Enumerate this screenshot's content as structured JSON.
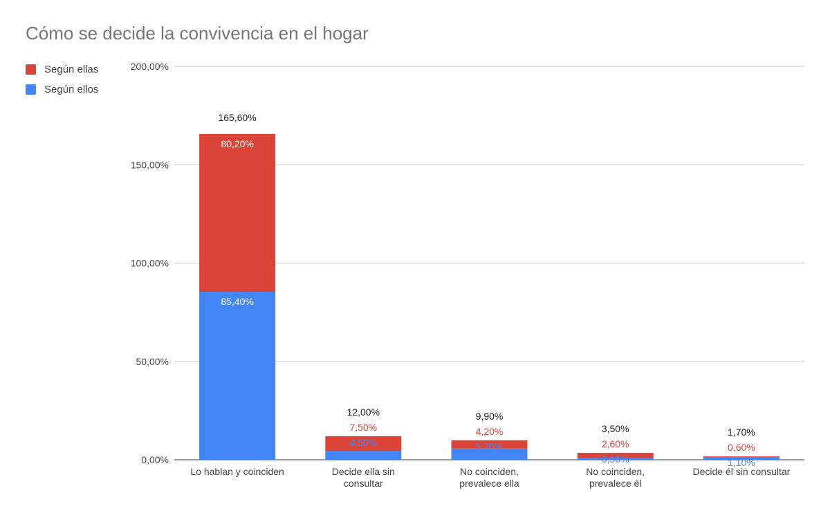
{
  "chart_data": {
    "type": "bar",
    "stacked": true,
    "title": "Cómo se decide la convivencia en el hogar",
    "xlabel": "",
    "ylabel": "",
    "categories": [
      "Lo hablan y coinciden",
      "Decide ella sin consultar",
      "No coinciden, prevalece ella",
      "No coinciden, prevalece él",
      "Decide él sin consultar"
    ],
    "category_lines": [
      [
        "Lo hablan y coinciden"
      ],
      [
        "Decide ella sin",
        "consultar"
      ],
      [
        "No coinciden,",
        "prevalece ella"
      ],
      [
        "No coinciden,",
        "prevalece él"
      ],
      [
        "Decide él sin consultar"
      ]
    ],
    "series": [
      {
        "name": "Según ellos",
        "color": "#4285f4",
        "values": [
          85.4,
          4.5,
          5.7,
          0.9,
          1.1
        ],
        "labels": [
          "85,40%",
          "4,50%",
          "5,70%",
          "0,90%",
          "1,10%"
        ]
      },
      {
        "name": "Según ellas",
        "color": "#db4437",
        "values": [
          80.2,
          7.5,
          4.2,
          2.6,
          0.6
        ],
        "labels": [
          "80,20%",
          "7,50%",
          "4,20%",
          "2,60%",
          "0,60%"
        ]
      }
    ],
    "totals": [
      "165,60%",
      "12,00%",
      "9,90%",
      "3,50%",
      "1,70%"
    ],
    "ylim": [
      0,
      200
    ],
    "yticks": [
      0,
      50,
      100,
      150,
      200
    ],
    "ytick_labels": [
      "0,00%",
      "50,00%",
      "100,00%",
      "150,00%",
      "200,00%"
    ],
    "legend": {
      "position": "top-left",
      "order": [
        {
          "label": "Según ellas",
          "color": "#db4437"
        },
        {
          "label": "Según ellos",
          "color": "#4285f4"
        }
      ]
    },
    "grid": true
  }
}
